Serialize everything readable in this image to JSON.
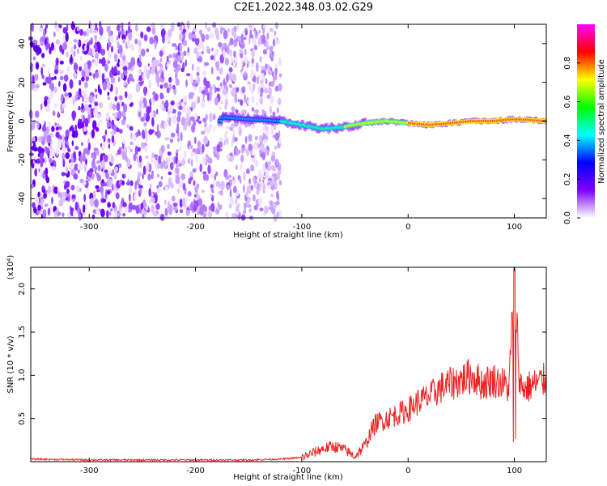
{
  "title": "C2E1.2022.348.03.02.G29",
  "chart_data": [
    {
      "type": "heatmap",
      "xlabel": "Height of straight line (km)",
      "ylabel": "Frequency (Hz)",
      "xlim": [
        -355,
        130
      ],
      "ylim": [
        -50,
        50
      ],
      "xticks": [
        -300,
        -200,
        -100,
        0,
        100
      ],
      "yticks": [
        40,
        20,
        0,
        -20,
        -40
      ],
      "colorbar": {
        "label": "Normalized spectral amplitude",
        "range": [
          0.0,
          1.0
        ],
        "ticks": [
          "0.0",
          "0.2",
          "0.4",
          "0.6",
          "0.8"
        ],
        "colors": [
          "#ffffff",
          "#7f00ff",
          "#0000ff",
          "#00ffff",
          "#00ff00",
          "#ffff00",
          "#ff0000",
          "#ff00ff"
        ]
      },
      "ridge": {
        "x": [
          -175,
          -150,
          -120,
          -100,
          -80,
          -60,
          -40,
          -20,
          0,
          20,
          40,
          60,
          80,
          100,
          130
        ],
        "y": [
          2,
          1,
          0,
          -2,
          -4,
          -3,
          -1,
          0,
          -1,
          -2,
          -1,
          0,
          0,
          1,
          0
        ]
      }
    },
    {
      "type": "line",
      "xlabel": "Height of straight line (km)",
      "ylabel": "SNR (10 * v/v)",
      "y_multiplier": "(x10⁴)",
      "xlim": [
        -355,
        130
      ],
      "ylim": [
        0,
        2.25
      ],
      "xticks": [
        -300,
        -200,
        -100,
        0,
        100
      ],
      "yticks": [
        "0.5",
        "1.0",
        "1.5",
        "2.0"
      ],
      "series": [
        {
          "color": "#ee2222",
          "x": [
            -355,
            -300,
            -250,
            -200,
            -150,
            -120,
            -100,
            -90,
            -80,
            -70,
            -60,
            -50,
            -40,
            -35,
            -30,
            -20,
            -10,
            0,
            10,
            20,
            30,
            40,
            50,
            60,
            70,
            80,
            90,
            95,
            100,
            105,
            110,
            120,
            130
          ],
          "y": [
            0.03,
            0.02,
            0.02,
            0.02,
            0.02,
            0.03,
            0.05,
            0.1,
            0.15,
            0.18,
            0.14,
            0.06,
            0.2,
            0.35,
            0.45,
            0.5,
            0.55,
            0.6,
            0.7,
            0.75,
            0.85,
            0.9,
            0.95,
            1.0,
            0.9,
            0.95,
            0.9,
            0.85,
            2.2,
            0.9,
            0.85,
            0.9,
            0.95
          ]
        }
      ]
    }
  ]
}
